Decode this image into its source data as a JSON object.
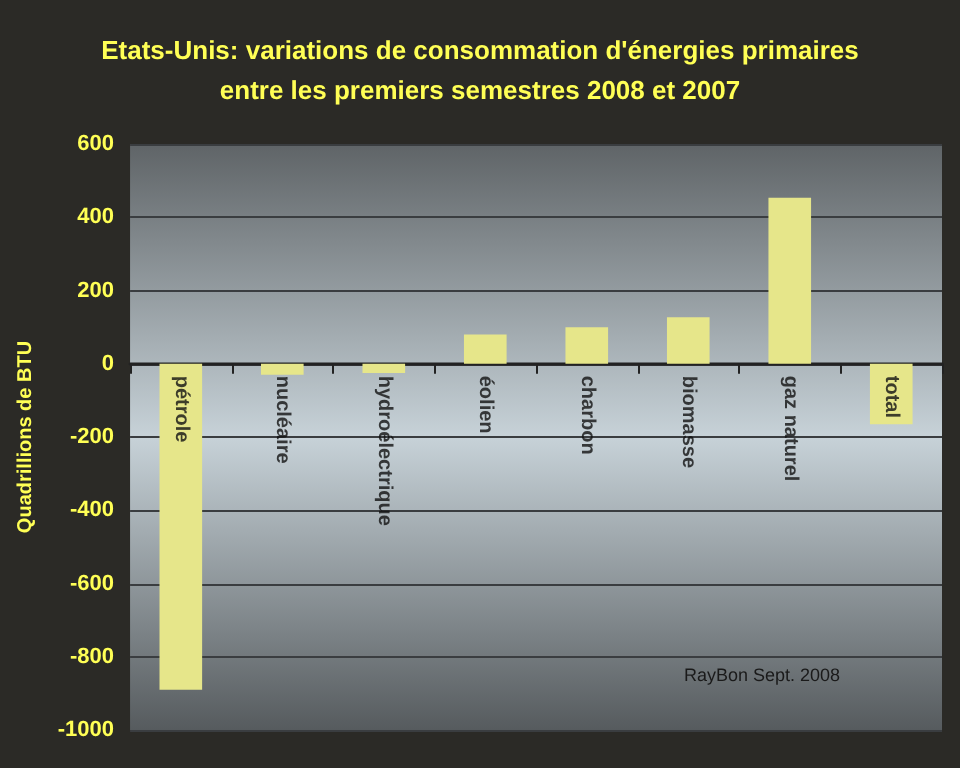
{
  "chart_data": {
    "type": "bar",
    "title": "Etats-Unis: variations de consommation d'énergies primaires\nentre les premiers semestres 2008 et 2007",
    "ylabel": "Quadrillions de BTU",
    "categories": [
      "pétrole",
      "nucléaire",
      "hydroélectrique",
      "éolien",
      "charbon",
      "biomasse",
      "gaz naturel",
      "total"
    ],
    "values": [
      -890,
      -30,
      -25,
      80,
      100,
      127,
      453,
      -165
    ],
    "color": "#e6e68a",
    "ylim": [
      -1000,
      600
    ],
    "yticks": [
      -1000,
      -800,
      -600,
      -400,
      -200,
      0,
      200,
      400,
      600
    ],
    "grid": true,
    "annotations": [
      "RayBon Sept. 2008"
    ]
  }
}
